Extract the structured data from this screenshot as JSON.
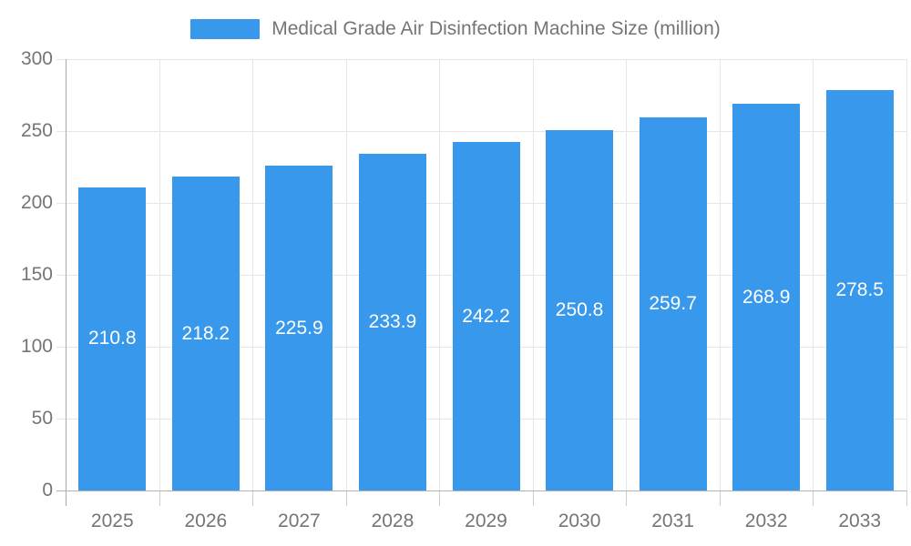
{
  "legend": {
    "label": "Medical Grade Air Disinfection Machine Size (million)"
  },
  "colors": {
    "bar": "#3899EC",
    "grid": "#E6E6E6",
    "axis_line": "#B3B3B3",
    "y_axis_line": "#AAAAAA",
    "tick": "#CCCCCC",
    "label_text": "#757575",
    "bar_label_text": "#FFFFFF",
    "background": "#FFFFFF"
  },
  "chart_data": {
    "type": "bar",
    "title": "Medical Grade Air Disinfection Machine Size (million)",
    "categories": [
      "2025",
      "2026",
      "2027",
      "2028",
      "2029",
      "2030",
      "2031",
      "2032",
      "2033"
    ],
    "values": [
      210.8,
      218.2,
      225.9,
      233.9,
      242.2,
      250.8,
      259.7,
      268.9,
      278.5
    ],
    "xlabel": "",
    "ylabel": "",
    "ylim": [
      0,
      300
    ],
    "yticks": [
      0,
      50,
      100,
      150,
      200,
      250,
      300
    ],
    "grid": true,
    "legend_position": "top",
    "data_labels": "inside-center",
    "data_label_color": "#FFFFFF"
  }
}
